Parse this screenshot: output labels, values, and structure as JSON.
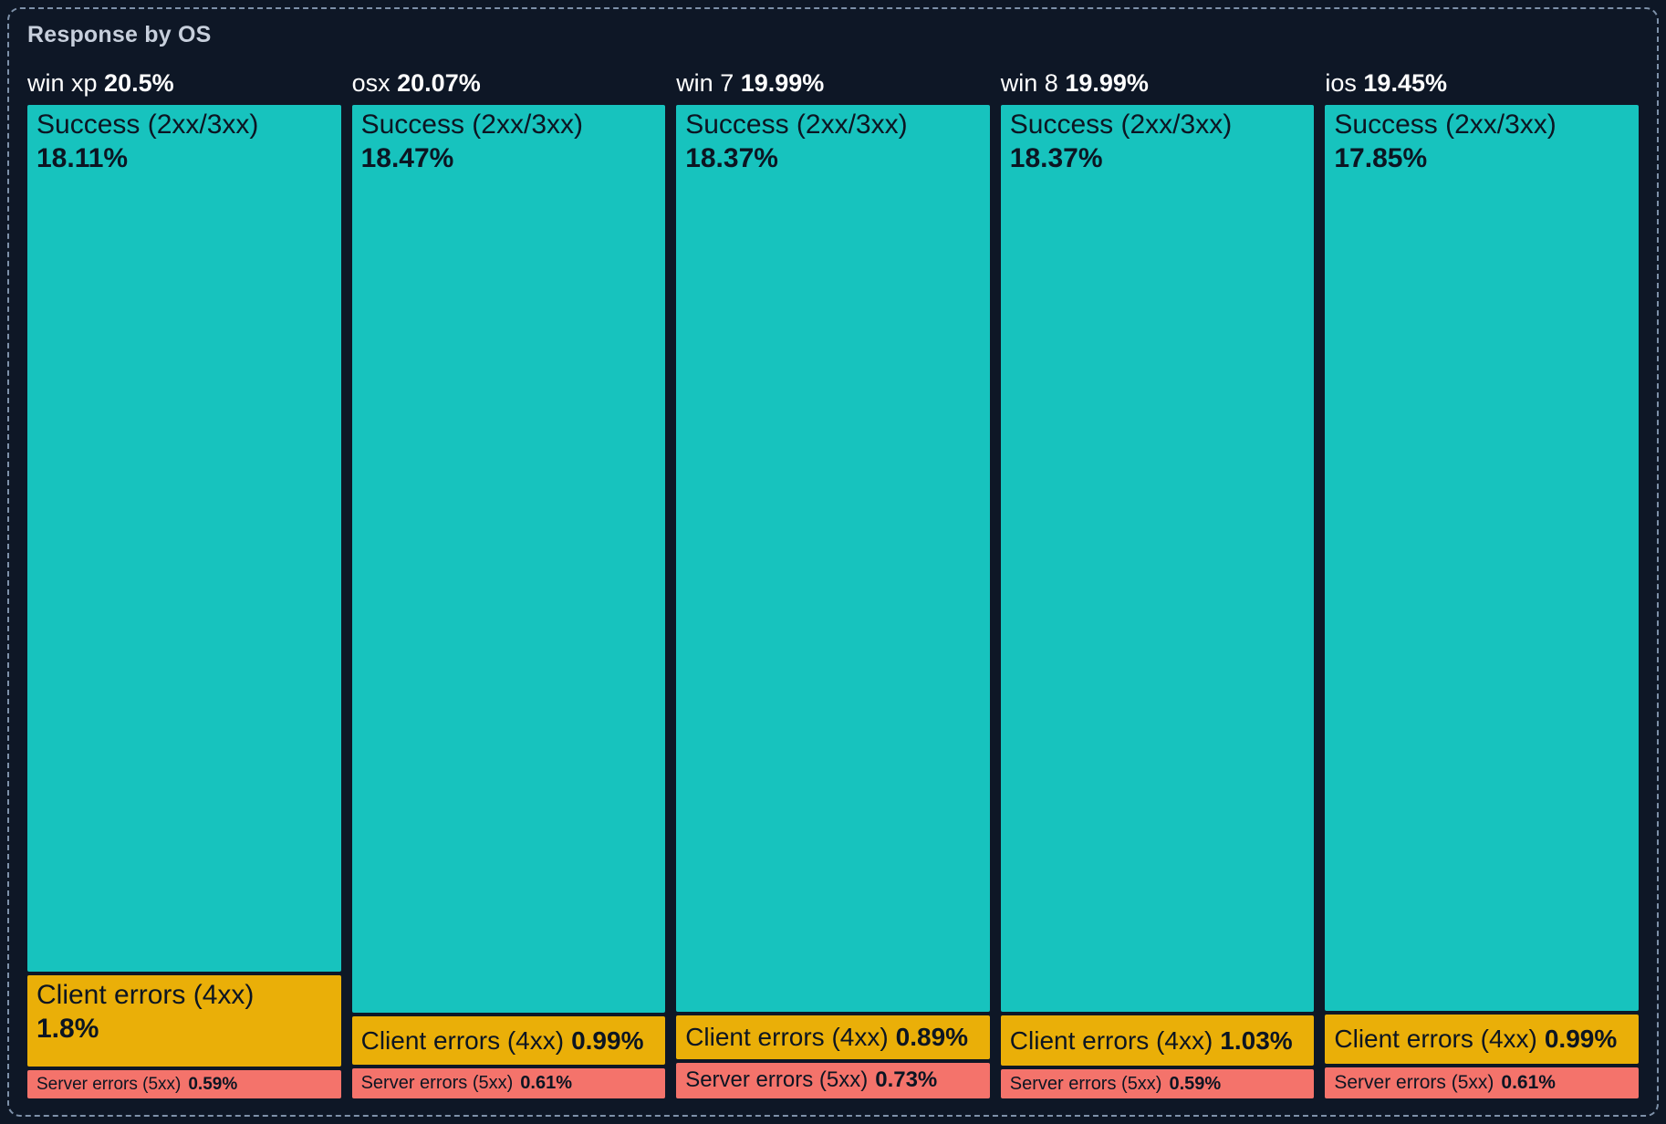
{
  "colors": {
    "background": "#0e1726",
    "panel_border": "#7e91a9",
    "title_text": "#c7cfdc",
    "header_text": "#ffffff",
    "cell_text": "#0c1522",
    "success": "#17c3be",
    "client": "#eaaf08",
    "server": "#f4736b"
  },
  "chart_data": {
    "type": "treemap",
    "title": "Response by OS",
    "unit": "%",
    "layout": "columns-by-group, segments-stacked-vertically, sized-by-value, labels-inside-cells",
    "legend": "none",
    "groups": [
      {
        "label": "win xp",
        "total_display": "20.5%",
        "total_value": 20.5,
        "segments": [
          {
            "key": "success",
            "label": "Success (2xx/3xx)",
            "value": 18.11,
            "display": "18.11%"
          },
          {
            "key": "client",
            "label": "Client errors (4xx)",
            "value": 1.8,
            "display": "1.8%"
          },
          {
            "key": "server",
            "label": "Server errors (5xx)",
            "value": 0.59,
            "display": "0.59%"
          }
        ]
      },
      {
        "label": "osx",
        "total_display": "20.07%",
        "total_value": 20.07,
        "segments": [
          {
            "key": "success",
            "label": "Success (2xx/3xx)",
            "value": 18.47,
            "display": "18.47%"
          },
          {
            "key": "client",
            "label": "Client errors (4xx)",
            "value": 0.99,
            "display": "0.99%"
          },
          {
            "key": "server",
            "label": "Server errors (5xx)",
            "value": 0.61,
            "display": "0.61%"
          }
        ]
      },
      {
        "label": "win 7",
        "total_display": "19.99%",
        "total_value": 19.99,
        "segments": [
          {
            "key": "success",
            "label": "Success (2xx/3xx)",
            "value": 18.37,
            "display": "18.37%"
          },
          {
            "key": "client",
            "label": "Client errors (4xx)",
            "value": 0.89,
            "display": "0.89%"
          },
          {
            "key": "server",
            "label": "Server errors (5xx)",
            "value": 0.73,
            "display": "0.73%"
          }
        ]
      },
      {
        "label": "win 8",
        "total_display": "19.99%",
        "total_value": 19.99,
        "segments": [
          {
            "key": "success",
            "label": "Success (2xx/3xx)",
            "value": 18.37,
            "display": "18.37%"
          },
          {
            "key": "client",
            "label": "Client errors (4xx)",
            "value": 1.03,
            "display": "1.03%"
          },
          {
            "key": "server",
            "label": "Server errors (5xx)",
            "value": 0.59,
            "display": "0.59%"
          }
        ]
      },
      {
        "label": "ios",
        "total_display": "19.45%",
        "total_value": 19.45,
        "segments": [
          {
            "key": "success",
            "label": "Success (2xx/3xx)",
            "value": 17.85,
            "display": "17.85%"
          },
          {
            "key": "client",
            "label": "Client errors (4xx)",
            "value": 0.99,
            "display": "0.99%"
          },
          {
            "key": "server",
            "label": "Server errors (5xx)",
            "value": 0.61,
            "display": "0.61%"
          }
        ]
      }
    ]
  }
}
